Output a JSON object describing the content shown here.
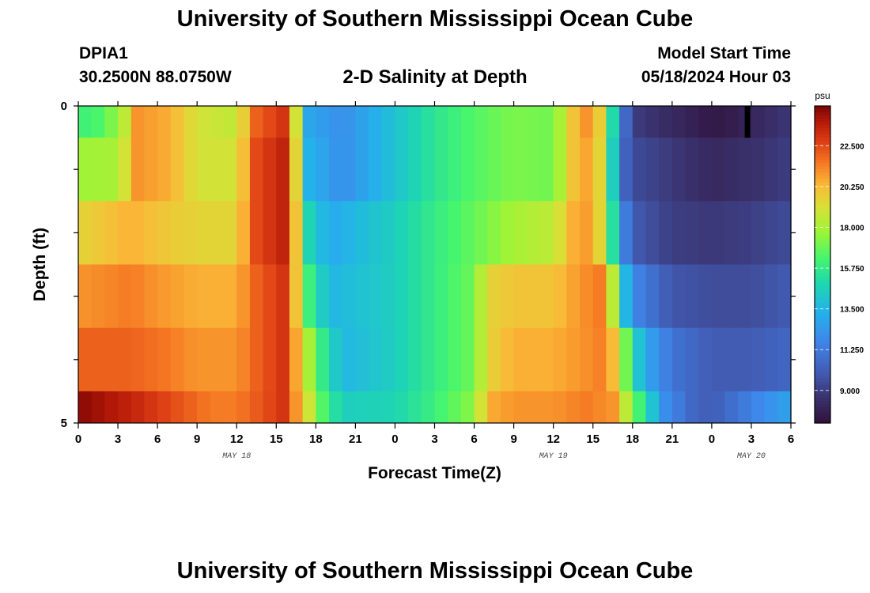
{
  "header": {
    "title": "University of Southern Mississippi Ocean Cube",
    "station": "DPIA1",
    "coords": "30.2500N  88.0750W",
    "subtitle": "2-D Salinity at Depth",
    "start_label": "Model Start Time",
    "start_value": "05/18/2024 Hour 03"
  },
  "footer": {
    "title": "University of Southern Mississippi Ocean Cube"
  },
  "chart_data": {
    "type": "heatmap",
    "title": "2-D Salinity at Depth",
    "xlabel": "Forecast Time(Z)",
    "ylabel": "Depth (ft)",
    "x_tick_labels": [
      "0",
      "3",
      "6",
      "9",
      "12",
      "15",
      "18",
      "21",
      "0",
      "3",
      "6",
      "9",
      "12",
      "15",
      "18",
      "21",
      "0",
      "3",
      "6"
    ],
    "x_hours": [
      0,
      3,
      6,
      9,
      12,
      15,
      18,
      21,
      24,
      27,
      30,
      33,
      36,
      39,
      42,
      45,
      48,
      51,
      54
    ],
    "xlim": [
      0,
      54
    ],
    "date_labels": [
      {
        "text": "MAY 18",
        "hour": 12
      },
      {
        "text": "MAY 19",
        "hour": 36
      },
      {
        "text": "MAY 20",
        "hour": 51
      }
    ],
    "y_tick_labels": [
      "0",
      "5"
    ],
    "ylim": [
      0,
      5
    ],
    "colorbar": {
      "unit": "psu",
      "range": [
        7.2,
        24.7
      ],
      "ticks": [
        9.0,
        11.25,
        13.5,
        15.75,
        18.0,
        20.25,
        22.5
      ],
      "tick_labels": [
        "9.000",
        "11.250",
        "13.500",
        "15.750",
        "18.000",
        "20.250",
        "22.500"
      ]
    },
    "layers": [
      {
        "depth_range": [
          0,
          0.5
        ],
        "keypoints": [
          [
            0,
            16.0
          ],
          [
            2,
            16.5
          ],
          [
            3.5,
            18.5
          ],
          [
            4.5,
            21.0
          ],
          [
            7,
            20.5
          ],
          [
            9,
            19.0
          ],
          [
            12,
            18.5
          ],
          [
            13.5,
            22.0
          ],
          [
            15.5,
            23.0
          ],
          [
            16.5,
            19.0
          ],
          [
            17.2,
            13.0
          ],
          [
            20,
            12.0
          ],
          [
            24,
            14.0
          ],
          [
            27,
            15.5
          ],
          [
            30,
            16.5
          ],
          [
            33,
            17.2
          ],
          [
            36,
            17.0
          ],
          [
            37.5,
            20.0
          ],
          [
            39,
            21.5
          ],
          [
            40,
            18.0
          ],
          [
            41,
            12.0
          ],
          [
            42,
            9.0
          ],
          [
            45,
            8.2
          ],
          [
            47,
            7.8
          ],
          [
            48,
            7.5
          ],
          [
            50,
            7.8
          ],
          [
            52,
            8.3
          ],
          [
            54,
            8.8
          ]
        ]
      },
      {
        "depth_range": [
          0.5,
          1.5
        ],
        "keypoints": [
          [
            0,
            17.8
          ],
          [
            3,
            18.0
          ],
          [
            4.5,
            21.0
          ],
          [
            7,
            20.5
          ],
          [
            9,
            19.0
          ],
          [
            12,
            19.0
          ],
          [
            13.5,
            22.5
          ],
          [
            15.5,
            23.5
          ],
          [
            16.5,
            19.5
          ],
          [
            17.2,
            13.5
          ],
          [
            20,
            12.0
          ],
          [
            24,
            14.0
          ],
          [
            27,
            15.5
          ],
          [
            30,
            16.5
          ],
          [
            33,
            17.2
          ],
          [
            36,
            17.0
          ],
          [
            37.5,
            20.0
          ],
          [
            39,
            21.0
          ],
          [
            40,
            18.0
          ],
          [
            41,
            11.0
          ],
          [
            42,
            9.5
          ],
          [
            45,
            8.8
          ],
          [
            48,
            8.2
          ],
          [
            51,
            8.5
          ],
          [
            54,
            9.0
          ]
        ]
      },
      {
        "depth_range": [
          1.5,
          2.5
        ],
        "keypoints": [
          [
            0,
            19.5
          ],
          [
            4,
            20.5
          ],
          [
            6,
            20.0
          ],
          [
            9,
            19.5
          ],
          [
            12,
            19.5
          ],
          [
            13.5,
            22.5
          ],
          [
            15.5,
            23.5
          ],
          [
            16.5,
            20.0
          ],
          [
            17.3,
            15.0
          ],
          [
            19,
            13.0
          ],
          [
            24,
            14.5
          ],
          [
            27,
            15.8
          ],
          [
            30,
            16.8
          ],
          [
            33,
            18.0
          ],
          [
            36,
            18.5
          ],
          [
            37.5,
            20.5
          ],
          [
            39,
            21.0
          ],
          [
            40,
            18.0
          ],
          [
            41,
            12.5
          ],
          [
            42,
            10.0
          ],
          [
            45,
            9.0
          ],
          [
            48,
            8.8
          ],
          [
            51,
            9.0
          ],
          [
            54,
            9.5
          ]
        ]
      },
      {
        "depth_range": [
          2.5,
          3.5
        ],
        "keypoints": [
          [
            0,
            21.0
          ],
          [
            4,
            21.5
          ],
          [
            6,
            21.0
          ],
          [
            9,
            20.5
          ],
          [
            12,
            20.5
          ],
          [
            13.5,
            22.0
          ],
          [
            15.5,
            23.0
          ],
          [
            16.5,
            20.0
          ],
          [
            17.5,
            16.0
          ],
          [
            19,
            13.5
          ],
          [
            24,
            14.5
          ],
          [
            27,
            15.8
          ],
          [
            30,
            17.0
          ],
          [
            31,
            19.5
          ],
          [
            33,
            20.0
          ],
          [
            36,
            20.0
          ],
          [
            38,
            21.0
          ],
          [
            39.5,
            21.5
          ],
          [
            40.5,
            18.5
          ],
          [
            41.5,
            13.5
          ],
          [
            42.5,
            11.5
          ],
          [
            45,
            9.8
          ],
          [
            48,
            9.5
          ],
          [
            51,
            9.5
          ],
          [
            54,
            10.0
          ]
        ]
      },
      {
        "depth_range": [
          3.5,
          4.5
        ],
        "keypoints": [
          [
            0,
            22.0
          ],
          [
            4,
            22.0
          ],
          [
            7,
            21.5
          ],
          [
            9,
            21.0
          ],
          [
            12,
            21.0
          ],
          [
            13.5,
            22.0
          ],
          [
            15.5,
            23.0
          ],
          [
            16.8,
            20.0
          ],
          [
            18,
            16.5
          ],
          [
            20,
            13.5
          ],
          [
            24,
            14.5
          ],
          [
            27,
            15.8
          ],
          [
            30,
            17.0
          ],
          [
            31,
            19.5
          ],
          [
            33,
            20.5
          ],
          [
            36,
            20.5
          ],
          [
            38,
            21.0
          ],
          [
            40,
            21.5
          ],
          [
            41,
            19.0
          ],
          [
            42,
            15.0
          ],
          [
            43,
            13.0
          ],
          [
            45,
            11.0
          ],
          [
            48,
            10.0
          ],
          [
            51,
            10.0
          ],
          [
            54,
            10.5
          ]
        ]
      },
      {
        "depth_range": [
          4.5,
          5.0
        ],
        "keypoints": [
          [
            0,
            24.5
          ],
          [
            2,
            24.0
          ],
          [
            4,
            23.5
          ],
          [
            7,
            22.5
          ],
          [
            10,
            21.5
          ],
          [
            12,
            21.5
          ],
          [
            15.5,
            23.0
          ],
          [
            17,
            20.0
          ],
          [
            18.5,
            16.5
          ],
          [
            20,
            14.5
          ],
          [
            24,
            14.8
          ],
          [
            27,
            16.0
          ],
          [
            30,
            17.5
          ],
          [
            31,
            20.5
          ],
          [
            33,
            21.0
          ],
          [
            36,
            21.0
          ],
          [
            38.5,
            21.5
          ],
          [
            40.5,
            21.0
          ],
          [
            41.5,
            18.5
          ],
          [
            43,
            15.0
          ],
          [
            44.5,
            12.0
          ],
          [
            46.5,
            10.5
          ],
          [
            48,
            10.0
          ],
          [
            50,
            11.0
          ],
          [
            52,
            12.0
          ],
          [
            54,
            12.8
          ]
        ]
      }
    ],
    "legend": "colorbar right"
  }
}
